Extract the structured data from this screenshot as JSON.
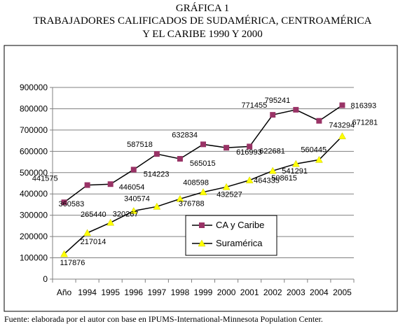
{
  "title_lines": [
    "GRÁFICA 1",
    "TRABAJADORES CALIFICADOS DE SUDAMÉRICA, CENTROAMÉRICA",
    "Y EL CARIBE 1990 Y 2000"
  ],
  "source": "Fuente: elaborada por el autor con base en IPUMS-International-Minnesota Population Center.",
  "chart_data": {
    "type": "line",
    "categories": [
      "Año",
      "1994",
      "1995",
      "1996",
      "1997",
      "1998",
      "1999",
      "2000",
      "2001",
      "2002",
      "2003",
      "2004",
      "2005"
    ],
    "ylim": [
      0,
      900000
    ],
    "yticks": [
      "0",
      "100000",
      "200000",
      "300000",
      "400000",
      "500000",
      "600000",
      "700000",
      "800000",
      "900000"
    ],
    "grid": "horizontal",
    "legend": "center",
    "series": [
      {
        "name": "CA y Caribe",
        "color": "#993366",
        "marker": "square",
        "values": [
          360583,
          441575,
          446054,
          514223,
          587518,
          565015,
          632834,
          616993,
          622681,
          771455,
          795241,
          743294,
          816393
        ],
        "labels": [
          "360583",
          "441575",
          "446054",
          "514223",
          "587518",
          "565015",
          "632834",
          "616993",
          "622681",
          "771455",
          "795241",
          "743294",
          "816393"
        ]
      },
      {
        "name": "Suramérica",
        "color": "#ffff00",
        "marker": "triangle",
        "values": [
          117876,
          217014,
          265440,
          320267,
          340574,
          376788,
          408598,
          432527,
          464335,
          508615,
          541291,
          560445,
          671281
        ],
        "labels": [
          "117876",
          "217014",
          "265440",
          "320267",
          "340574",
          "376788",
          "408598",
          "432527",
          "464335",
          "508615",
          "541291",
          "560445",
          "671281"
        ]
      }
    ]
  }
}
